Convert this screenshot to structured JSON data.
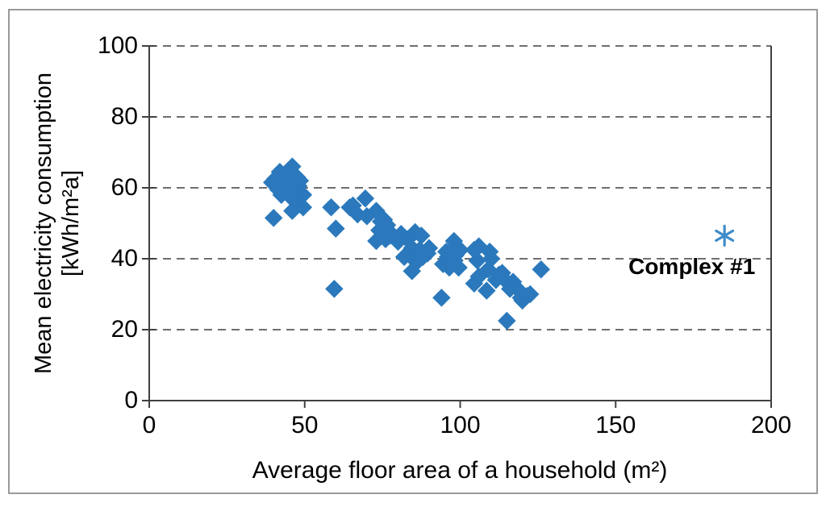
{
  "chart_data": {
    "type": "scatter",
    "xlabel": "Average floor area of a household (m²)",
    "ylabel_line1": "Mean electricity consumption",
    "ylabel_line2": "[kWh/m²a]",
    "xlim": [
      0,
      200
    ],
    "ylim": [
      0,
      100
    ],
    "x_ticks": [
      0,
      50,
      100,
      150,
      200
    ],
    "y_ticks": [
      0,
      20,
      40,
      60,
      80,
      100
    ],
    "grid": "horizontal-dashed",
    "gridline_color": "#6e6e6e",
    "axis_color": "#404040",
    "series": [
      {
        "id": "main-scatter",
        "marker": "diamond",
        "color": "#2b79bc",
        "points": [
          [
            39.5,
            61.5
          ],
          [
            40.5,
            62.5
          ],
          [
            41.5,
            59.5
          ],
          [
            42,
            64.5
          ],
          [
            42.5,
            58
          ],
          [
            43,
            60.5
          ],
          [
            44,
            61
          ],
          [
            44.5,
            62.5
          ],
          [
            45.5,
            59
          ],
          [
            46,
            66
          ],
          [
            46,
            53.5
          ],
          [
            46.5,
            56.5
          ],
          [
            47,
            60.5
          ],
          [
            47.5,
            63
          ],
          [
            48,
            60.5
          ],
          [
            48.5,
            62
          ],
          [
            49.5,
            58
          ],
          [
            49.5,
            54.5
          ],
          [
            40,
            51.5
          ],
          [
            58.5,
            54.5
          ],
          [
            60,
            48.5
          ],
          [
            64.5,
            54.5
          ],
          [
            65.5,
            55
          ],
          [
            67,
            52.5
          ],
          [
            69.5,
            57
          ],
          [
            70,
            52
          ],
          [
            59.5,
            31.5
          ],
          [
            73,
            53.5
          ],
          [
            74.5,
            50.5
          ],
          [
            75.5,
            51
          ],
          [
            76.5,
            49.5
          ],
          [
            74,
            48
          ],
          [
            73,
            45
          ],
          [
            76,
            45.5
          ],
          [
            77.5,
            46.5
          ],
          [
            78.5,
            46.5
          ],
          [
            80,
            44.8
          ],
          [
            81,
            47
          ],
          [
            83,
            45.5
          ],
          [
            85.5,
            47.5
          ],
          [
            87.5,
            46.5
          ],
          [
            84.5,
            43
          ],
          [
            87,
            42.5
          ],
          [
            90,
            43
          ],
          [
            82,
            40.5
          ],
          [
            85,
            40
          ],
          [
            86,
            39
          ],
          [
            88,
            40.5
          ],
          [
            89.5,
            41.5
          ],
          [
            84.5,
            36.5
          ],
          [
            94,
            29
          ],
          [
            94.5,
            38.5
          ],
          [
            95.5,
            42
          ],
          [
            96,
            40.5
          ],
          [
            96.5,
            37.5
          ],
          [
            98,
            43
          ],
          [
            98,
            45
          ],
          [
            98.5,
            41
          ],
          [
            98.2,
            39.5
          ],
          [
            99.5,
            37.5
          ],
          [
            100,
            42.5
          ],
          [
            104.5,
            42.5
          ],
          [
            106,
            43.5
          ],
          [
            105.5,
            39.5
          ],
          [
            109.5,
            42
          ],
          [
            110,
            40
          ],
          [
            106,
            35
          ],
          [
            104.5,
            33
          ],
          [
            109,
            37
          ],
          [
            108.5,
            31
          ],
          [
            111.5,
            34
          ],
          [
            112.5,
            35.5
          ],
          [
            113.5,
            36
          ],
          [
            115,
            33.5
          ],
          [
            117,
            33.5
          ],
          [
            116,
            31.5
          ],
          [
            119,
            31
          ],
          [
            119.5,
            29
          ],
          [
            120,
            28.2
          ],
          [
            121.5,
            29.5
          ],
          [
            122.5,
            30
          ],
          [
            115,
            22.5
          ],
          [
            126,
            37
          ]
        ]
      },
      {
        "id": "complex-1",
        "marker": "asterisk",
        "color": "#3f8cc9",
        "points": [
          [
            185,
            46.5
          ]
        ]
      }
    ],
    "annotation": {
      "label": "Complex #1",
      "x": 174.5,
      "y": 37.7
    }
  }
}
